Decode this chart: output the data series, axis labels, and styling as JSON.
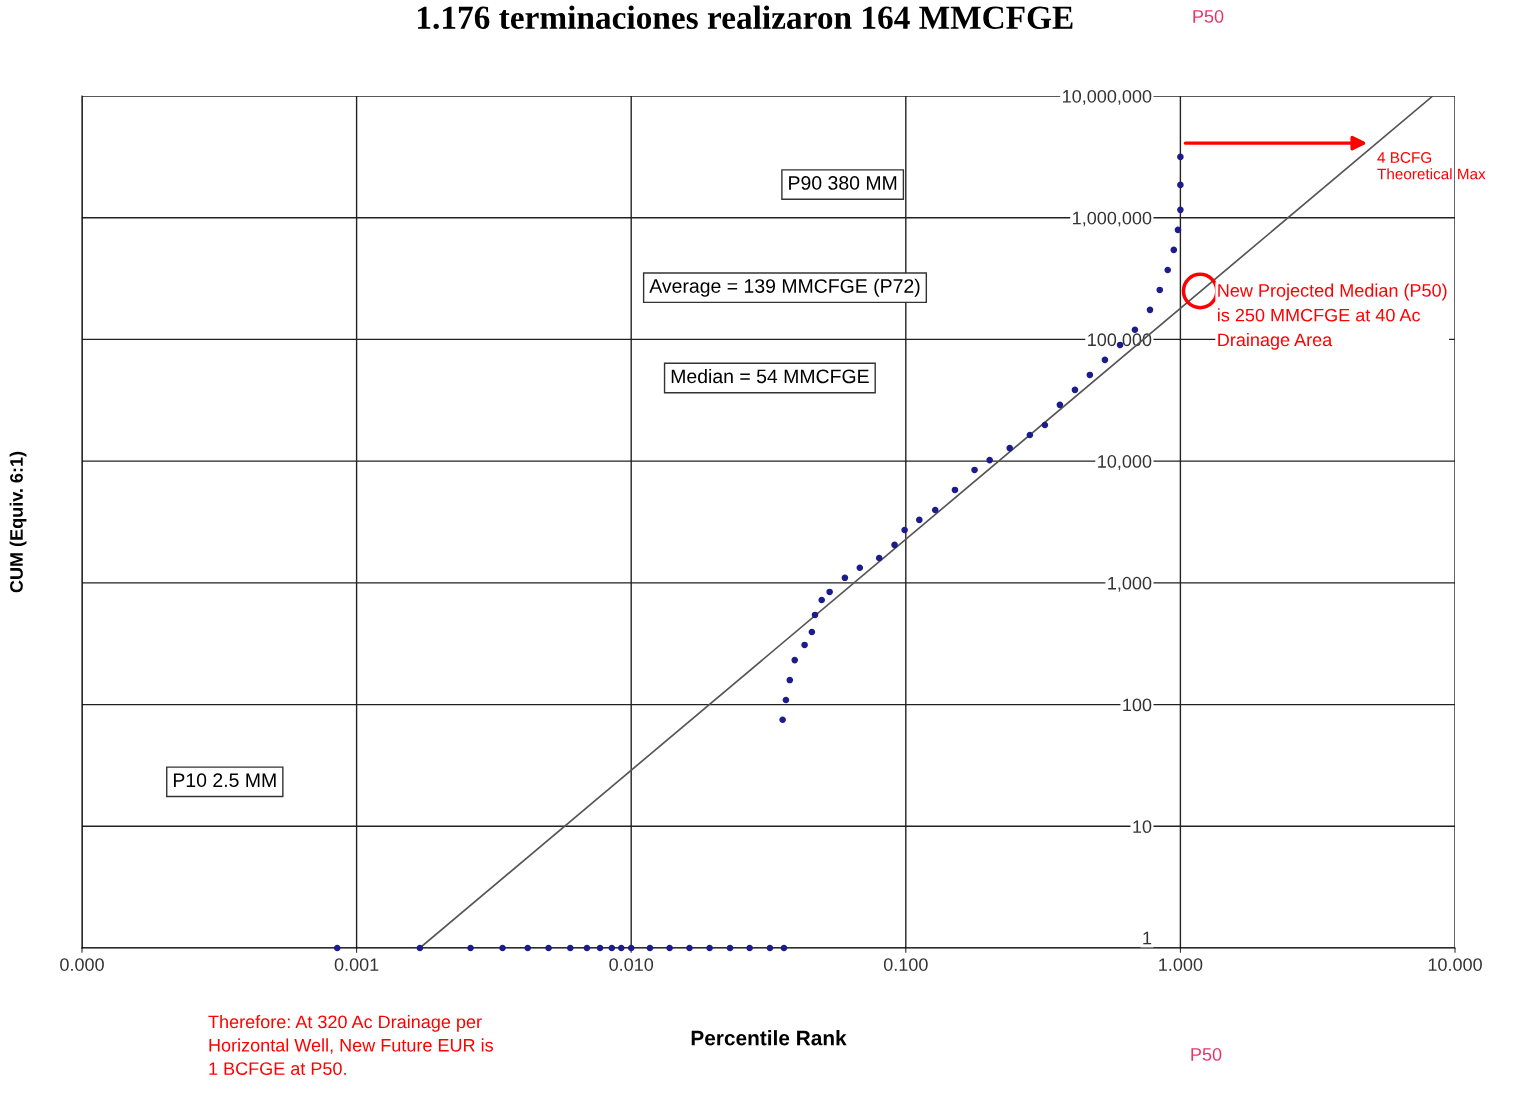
{
  "chart_data": {
    "type": "scatter",
    "title": "1.176 terminaciones realizaron 164 MMCFGE",
    "xlabel": "Percentile Rank",
    "ylabel": "CUM (Equiv. 6:1)",
    "log": "xy",
    "grid": true,
    "xlim": [
      0.0001,
      10
    ],
    "xticks": [
      {
        "value": 0.0001,
        "label": "0.000"
      },
      {
        "value": 0.001,
        "label": "0.001"
      },
      {
        "value": 0.01,
        "label": "0.010"
      },
      {
        "value": 0.1,
        "label": "0.100"
      },
      {
        "value": 1,
        "label": "1.000"
      },
      {
        "value": 10,
        "label": "10.000"
      }
    ],
    "ylim": [
      1,
      10000000
    ],
    "yticks": [
      1,
      10,
      100,
      {
        "value": 1000,
        "label": "1,000"
      },
      {
        "value": 10000,
        "label": "10,000"
      },
      {
        "value": 100000,
        "label": "100,000"
      },
      {
        "value": 1000000,
        "label": "1,000,000"
      },
      {
        "value": 10000000,
        "label": "10,000,000"
      }
    ],
    "series": [
      {
        "marker": "circle",
        "color": "#1c1c8a",
        "x": [
          0.00085,
          0.0017,
          0.0026,
          0.0034,
          0.0042,
          0.005,
          0.006,
          0.0069,
          0.0077,
          0.0085,
          0.0092,
          0.01,
          0.0117,
          0.0138,
          0.0163,
          0.0193,
          0.0229,
          0.027,
          0.032,
          0.036
        ],
        "values": [
          1,
          1,
          1,
          1,
          1,
          1,
          1,
          1,
          1,
          1,
          1,
          1,
          1,
          1,
          1,
          1,
          1,
          1,
          1,
          1
        ]
      },
      {
        "marker": "circle",
        "color": "#1c1c8a",
        "x": [
          0.0356,
          0.0366,
          0.0378,
          0.0394,
          0.0428,
          0.0455,
          0.0467,
          0.0494,
          0.0528,
          0.06,
          0.068,
          0.08,
          0.091,
          0.099,
          0.112,
          0.128,
          0.151,
          0.178,
          0.202,
          0.239,
          0.283,
          0.321,
          0.364,
          0.413,
          0.468,
          0.531,
          0.603,
          0.683,
          0.775,
          0.841,
          0.899,
          0.946,
          0.98,
          1.0,
          1.0,
          1.0
        ],
        "values": [
          75,
          109,
          159,
          232,
          309,
          395,
          545,
          723,
          842,
          1100,
          1330,
          1600,
          2050,
          2720,
          3290,
          3970,
          5800,
          8470,
          10200,
          12800,
          16400,
          19800,
          29000,
          38500,
          51100,
          67900,
          90100,
          120000,
          175000,
          255000,
          372000,
          544000,
          794000,
          1160000,
          1860000,
          3160000
        ]
      },
      {
        "type": "line",
        "marker": "none",
        "color": "#555555",
        "x": [
          0.0017,
          8.3
        ],
        "values": [
          1,
          10000000
        ]
      }
    ],
    "annotations": [
      "P90 380 MM",
      "Average = 139 MMCFGE (P72)",
      "Median = 54 MMCFGE",
      "P10 2.5 MM",
      {
        "text": "New Projected Median (P50)\nis 250 MMCFGE at 40 Ac\nDrainage Area",
        "x": 1.18,
        "y": 250000
      },
      {
        "text": "4 BCFG\nTheoretical Max",
        "x": 4.9,
        "y": 4100000
      },
      "Therefore: At 320 Ac Drainage per\nHorizontal Well, New Future EUR is\n1 BCFGE at P50.",
      "P50",
      "P50"
    ]
  }
}
